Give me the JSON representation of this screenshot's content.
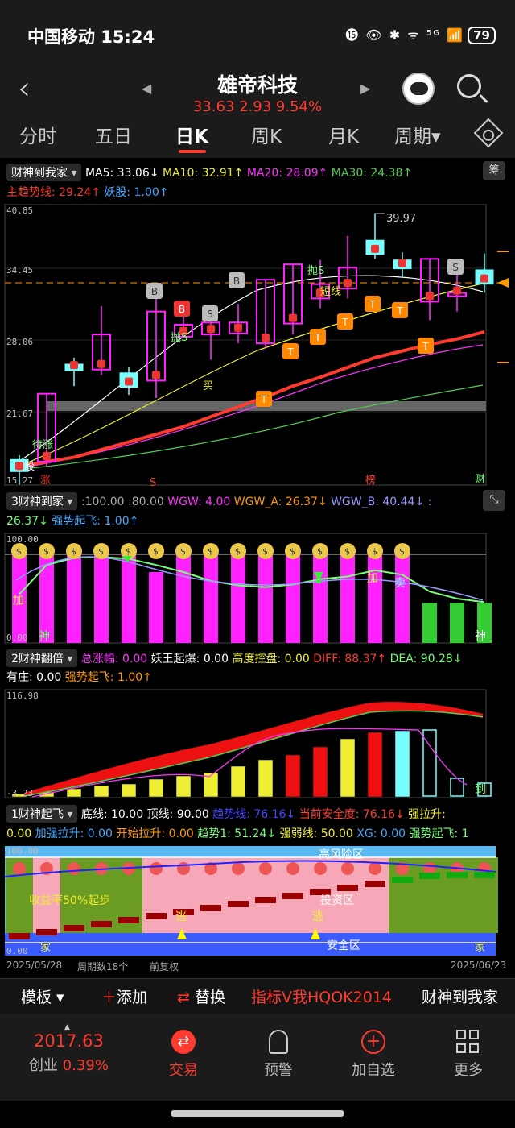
{
  "status": {
    "carrier_time": "中国移动 15:24",
    "icons": "⓯ 👁 ✱ ᯤ ⁵ᴳ 📶",
    "battery": "79"
  },
  "header": {
    "stock_name": "雄帝科技",
    "quote": "33.63 2.93 9.54%"
  },
  "tabs": [
    "分时",
    "五日",
    "日K",
    "周K",
    "月K",
    "周期▾"
  ],
  "main_legend": {
    "indicator": "财神到我家",
    "ma5": "MA5: 33.06↓",
    "ma10": "MA10: 32.91↑",
    "ma20": "MA20: 28.09↑",
    "ma30": "MA30: 24.38↑",
    "line2a": "主趋势线: 29.24↑",
    "line2b": "妖股: 1.00↑",
    "chip_label": "筹"
  },
  "main_axis": {
    "max": "40.85",
    "p2": "34.45",
    "p3": "28.06",
    "p4": "21.67",
    "min": "15.27",
    "peak": "39.97"
  },
  "main_marks": {
    "s_label": "S",
    "bang": "榜",
    "cai": "财",
    "zhang": "涨",
    "gu": "股",
    "sell_s": "抛S",
    "buy": "买",
    "short": "短线",
    "delay": "待涨",
    "B": "B",
    "S": "S",
    "T": "T"
  },
  "p3_legend": {
    "indicator": "3财神到家",
    "params": ":100.00 :80.00",
    "wgw": "WGW: 4.00",
    "wgwa": "WGW_A: 26.37↓",
    "wgwb": "WGW_B: 40.44↓ :",
    "line2a": "26.37↓",
    "line2b": "强势起飞: 1.00↑"
  },
  "p3_axis": {
    "max": "100.00",
    "min": "0.00"
  },
  "p3_marks": {
    "jia": "加",
    "shen": "神",
    "mai": "卖"
  },
  "p2_legend": {
    "indicator": "2财神翻倍",
    "a": "总涨幅: 0.00",
    "b": "妖王起爆: 0.00",
    "c": "高度控盘: 0.00",
    "d": "DIFF: 88.37↑",
    "e": "DEA: 90.28↓",
    "f": "有庄: 0.00",
    "g": "强势起飞: 1.00↑"
  },
  "p2_axis": {
    "max": "116.98",
    "min": "-3.23"
  },
  "p2_marks": {
    "dao": "到"
  },
  "p1_legend": {
    "indicator": "1财神起飞",
    "a": "底线: 10.00",
    "b": "顶线: 90.00",
    "c": "趋势线: 76.16↓",
    "d": "当前安全度: 76.16↓",
    "e": "强拉升:",
    "f": "0.00",
    "g": "加强拉升: 0.00",
    "h": "开始拉升: 0.00",
    "i": "趋势1: 51.24↓",
    "j": "强弱线: 50.00",
    "k": "XG: 0.00",
    "l": "强势起飞: 1"
  },
  "p1_axis": {
    "max": "100.00",
    "min": "0.00"
  },
  "p1_marks": {
    "high_risk": "高风险区",
    "invest": "投资区",
    "safe": "安全区",
    "yield": "收益率50%起步",
    "tao": "逃",
    "jia": "家"
  },
  "date_bar": {
    "start": "2025/05/28",
    "cycles": "周期数18个",
    "adj": "前复权",
    "end": "2025/06/23"
  },
  "toolbar": {
    "template": "模板",
    "add": "添加",
    "replace": "替换",
    "indicator1": "指标V我HQOK2014",
    "indicator2": "财神到我家"
  },
  "bottom": {
    "index_value": "2017.63",
    "index_name": "创业",
    "index_change": "0.39%",
    "trade": "交易",
    "alert": "预警",
    "add_fav": "加自选",
    "more": "更多"
  },
  "colors": {
    "up": "#ff3b30",
    "magenta": "#ff22ff",
    "cyan": "#7ff",
    "green": "#5c5",
    "yellow": "#ee3"
  },
  "chart_data": {
    "type": "candlestick",
    "ylim": [
      15.27,
      40.85
    ],
    "candles": [
      {
        "o": 17.6,
        "c": 16.5,
        "h": 18.0,
        "l": 15.3
      },
      {
        "o": 17.4,
        "c": 23.6,
        "h": 23.6,
        "l": 17.0
      },
      {
        "o": 26.3,
        "c": 25.7,
        "h": 26.9,
        "l": 24.3
      },
      {
        "o": 25.8,
        "c": 29.0,
        "h": 31.6,
        "l": 25.3
      },
      {
        "o": 25.5,
        "c": 24.2,
        "h": 26.0,
        "l": 23.5
      },
      {
        "o": 24.8,
        "c": 31.1,
        "h": 32.9,
        "l": 23.2
      },
      {
        "o": 28.8,
        "c": 29.9,
        "h": 31.0,
        "l": 28.7
      },
      {
        "o": 29.0,
        "c": 30.1,
        "h": 30.2,
        "l": 26.7
      },
      {
        "o": 29.1,
        "c": 30.1,
        "h": 31.8,
        "l": 28.2
      },
      {
        "o": 28.2,
        "c": 34.0,
        "h": 34.0,
        "l": 27.8
      },
      {
        "o": 30.0,
        "c": 35.4,
        "h": 35.4,
        "l": 29.0
      },
      {
        "o": 32.3,
        "c": 33.6,
        "h": 35.8,
        "l": 31.4
      },
      {
        "o": 33.2,
        "c": 35.1,
        "h": 38.0,
        "l": 32.3
      },
      {
        "o": 37.6,
        "c": 36.3,
        "h": 39.97,
        "l": 35.9
      },
      {
        "o": 35.8,
        "c": 35.0,
        "h": 36.5,
        "l": 34.2
      },
      {
        "o": 32.0,
        "c": 35.9,
        "h": 35.9,
        "l": 30.3
      },
      {
        "o": 32.5,
        "c": 32.8,
        "h": 34.7,
        "l": 31.1
      },
      {
        "o": 34.9,
        "c": 33.6,
        "h": 36.4,
        "l": 32.8
      }
    ],
    "ma_main": [
      17.0,
      17.4,
      17.8,
      18.5,
      19.2,
      19.9,
      20.6,
      21.5,
      22.4,
      23.3,
      24.3,
      25.1,
      26.0,
      26.9,
      27.5,
      28.1,
      28.6,
      29.24
    ],
    "p3_bars": [
      100,
      100,
      100,
      100,
      100,
      80,
      100,
      100,
      100,
      100,
      100,
      100,
      100,
      100,
      100,
      45,
      45,
      45
    ],
    "p3_line": [
      55,
      88,
      96,
      97,
      95,
      88,
      80,
      70,
      65,
      63,
      66,
      72,
      75,
      82,
      77,
      58,
      50,
      46
    ]
  }
}
